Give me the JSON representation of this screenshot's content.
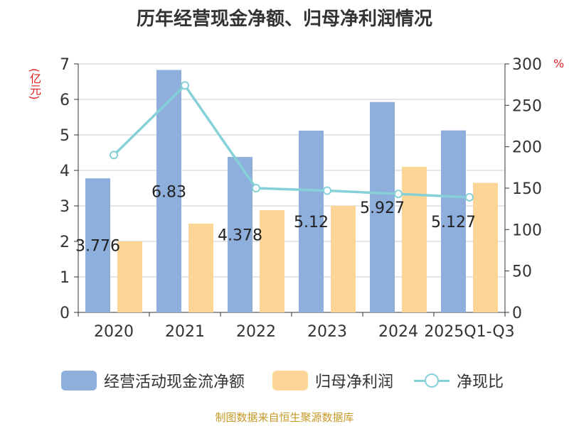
{
  "title": "历年经营现金净额、归母净利润情况",
  "source": "制图数据来自恒生聚源数据库",
  "chart_data": {
    "type": "bar",
    "categories": [
      "2020",
      "2021",
      "2022",
      "2023",
      "2024",
      "2025Q1-Q3"
    ],
    "y_left": {
      "label": "(亿元)",
      "min": 0,
      "max": 7,
      "ticks": [
        0,
        1,
        2,
        3,
        4,
        5,
        6,
        7
      ]
    },
    "y_right": {
      "label": "%",
      "min": 0,
      "max": 300,
      "ticks": [
        0,
        50,
        100,
        150,
        200,
        250,
        300
      ]
    },
    "grid": true,
    "legend_position": "bottom",
    "series": [
      {
        "name": "经营活动现金流净额",
        "type": "bar",
        "axis": "left",
        "color": "#8EAEDC",
        "values": [
          3.776,
          6.83,
          4.378,
          5.12,
          5.927,
          5.127
        ],
        "data_labels": [
          "3.776",
          "6.83",
          "4.378",
          "5.12",
          "5.927",
          "5.127"
        ]
      },
      {
        "name": "归母净利润",
        "type": "bar",
        "axis": "left",
        "color": "#FDD596",
        "values": [
          2.0,
          2.5,
          2.88,
          3.0,
          4.1,
          3.65
        ]
      },
      {
        "name": "净现比",
        "type": "line",
        "axis": "right",
        "color": "#86D0D8",
        "values": [
          190,
          274,
          150,
          147,
          143,
          139
        ]
      }
    ]
  },
  "colors": {
    "title": "#333333",
    "axis_label": "#E02020",
    "source": "#C59A2A"
  }
}
